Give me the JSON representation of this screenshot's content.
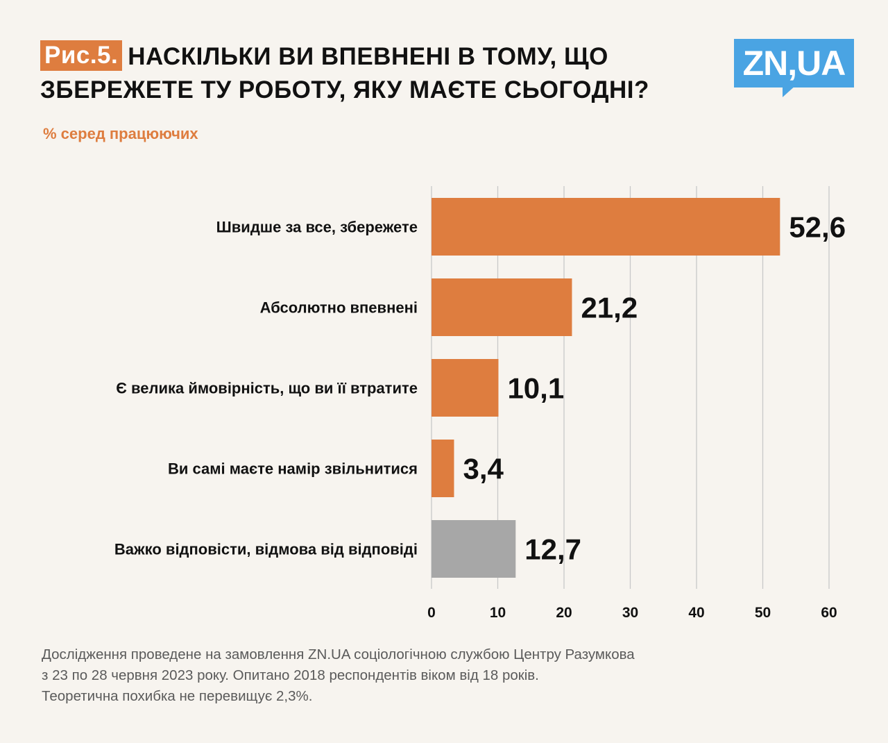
{
  "header": {
    "figure_label": "Рис.5.",
    "title_line1": "НАСКІЛЬКИ ВИ ВПЕВНЕНІ В ТОМУ, ЩО",
    "title_line2": "ЗБЕРЕЖЕТЕ ТУ РОБОТУ, ЯКУ МАЄТЕ СЬОГОДНІ?",
    "subtitle": "% серед працюючих",
    "logo_text": "ZN,UA"
  },
  "colors": {
    "accent": "#de7d3f",
    "gray_bar": "#a7a7a7",
    "logo": "#4aa4e3",
    "grid": "#c8c8c8"
  },
  "chart_data": {
    "type": "bar",
    "orientation": "horizontal",
    "categories": [
      "Швидше за все, збережете",
      "Абсолютно впевнені",
      "Є велика ймовірність, що ви її втратите",
      "Ви самі маєте намір звільнитися",
      "Важко відповісти, відмова від відповіді"
    ],
    "values": [
      52.6,
      21.2,
      10.1,
      3.4,
      12.7
    ],
    "value_labels": [
      "52,6",
      "21,2",
      "10,1",
      "3,4",
      "12,7"
    ],
    "bar_colors": [
      "#de7d3f",
      "#de7d3f",
      "#de7d3f",
      "#de7d3f",
      "#a7a7a7"
    ],
    "xlim": [
      0,
      60
    ],
    "xticks": [
      0,
      10,
      20,
      30,
      40,
      50,
      60
    ],
    "grid": true,
    "legend": "none"
  },
  "footer": {
    "line1": "Дослідження проведене на замовлення ZN.UA соціологічною службою Центру Разумкова",
    "line2": "з 23 по 28 червня 2023 року. Опитано 2018 респондентів віком від 18 років.",
    "line3": "Теоретична похибка не перевищує 2,3%."
  }
}
